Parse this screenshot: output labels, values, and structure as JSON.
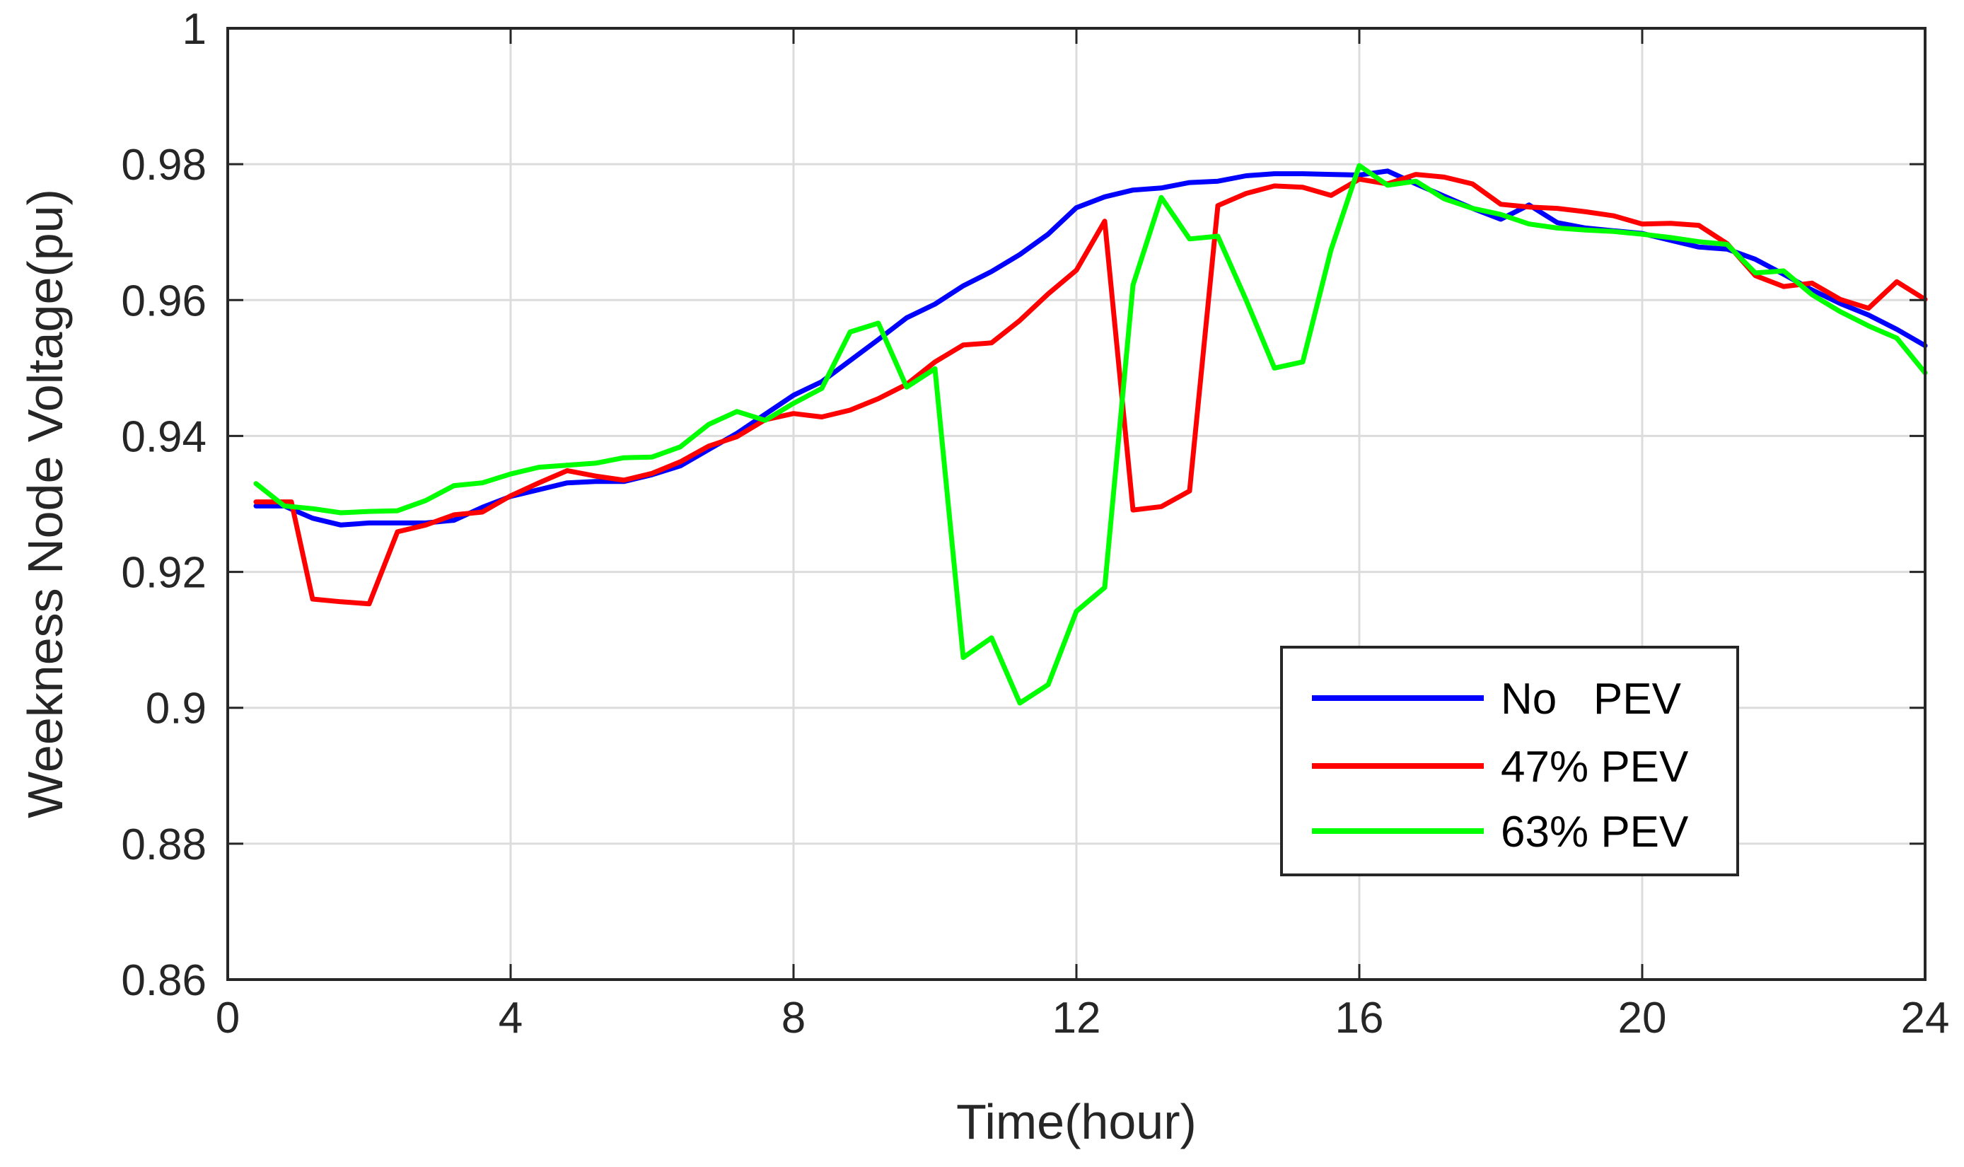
{
  "chart_data": {
    "type": "line",
    "title": "",
    "xlabel": "Time(hour)",
    "ylabel": "Weekness Node Voltage(pu)",
    "xlim": [
      0,
      24
    ],
    "ylim": [
      0.86,
      1.0
    ],
    "xticks": [
      0,
      4,
      8,
      12,
      16,
      20,
      24
    ],
    "yticks": [
      0.86,
      0.88,
      0.9,
      0.92,
      0.94,
      0.96,
      0.98,
      1.0
    ],
    "xtick_labels": [
      "0",
      "4",
      "8",
      "12",
      "16",
      "20",
      "24"
    ],
    "ytick_labels": [
      "0.86",
      "0.88",
      "0.9",
      "0.92",
      "0.94",
      "0.96",
      "0.98",
      "1"
    ],
    "grid": true,
    "legend": "bottom-right",
    "series": [
      {
        "name": "No   PEV",
        "color": "#0000ff",
        "x": [
          0.4,
          0.8,
          1.2,
          1.6,
          2.0,
          2.4,
          2.8,
          3.2,
          3.6,
          4.0,
          4.4,
          4.8,
          5.2,
          5.6,
          6.0,
          6.4,
          6.8,
          7.2,
          7.6,
          8.0,
          8.4,
          8.8,
          9.2,
          9.6,
          10.0,
          10.4,
          10.8,
          11.2,
          11.6,
          12.0,
          12.4,
          12.8,
          13.2,
          13.6,
          14.0,
          14.4,
          14.8,
          15.2,
          15.6,
          16.0,
          16.4,
          16.8,
          17.2,
          17.6,
          18.0,
          18.4,
          18.8,
          19.2,
          19.6,
          20.0,
          20.4,
          20.8,
          21.2,
          21.6,
          22.0,
          22.4,
          22.8,
          23.2,
          23.6,
          24.0
        ],
        "y": [
          0.9297,
          0.9297,
          0.9279,
          0.9269,
          0.9272,
          0.9272,
          0.9272,
          0.9276,
          0.9295,
          0.9311,
          0.9321,
          0.9331,
          0.9333,
          0.9333,
          0.9343,
          0.9356,
          0.938,
          0.9404,
          0.9432,
          0.946,
          0.948,
          0.9511,
          0.9542,
          0.9574,
          0.9594,
          0.9621,
          0.9642,
          0.9667,
          0.9697,
          0.9736,
          0.9752,
          0.9762,
          0.9765,
          0.9773,
          0.9775,
          0.9783,
          0.9786,
          0.9786,
          0.9785,
          0.9784,
          0.979,
          0.9771,
          0.9753,
          0.9735,
          0.9719,
          0.974,
          0.9714,
          0.9706,
          0.9702,
          0.9698,
          0.9688,
          0.9678,
          0.9675,
          0.966,
          0.9638,
          0.9615,
          0.9595,
          0.9578,
          0.9557,
          0.9533
        ]
      },
      {
        "name": "47% PEV",
        "color": "#ff0000",
        "x": [
          0.4,
          0.9,
          1.2,
          1.6,
          2.0,
          2.4,
          2.8,
          3.2,
          3.6,
          4.0,
          4.4,
          4.8,
          5.2,
          5.6,
          6.0,
          6.4,
          6.8,
          7.2,
          7.6,
          8.0,
          8.4,
          8.8,
          9.2,
          9.6,
          10.0,
          10.4,
          10.8,
          11.2,
          11.6,
          12.0,
          12.4,
          12.8,
          13.2,
          13.6,
          14.0,
          14.4,
          14.8,
          15.2,
          15.6,
          16.0,
          16.4,
          16.8,
          17.2,
          17.6,
          18.0,
          18.4,
          18.8,
          19.2,
          19.6,
          20.0,
          20.4,
          20.8,
          21.2,
          21.6,
          22.0,
          22.4,
          22.8,
          23.2,
          23.6,
          24.0
        ],
        "y": [
          0.9303,
          0.9303,
          0.916,
          0.9156,
          0.9153,
          0.9259,
          0.9269,
          0.9284,
          0.9288,
          0.9312,
          0.9331,
          0.9349,
          0.9341,
          0.9335,
          0.9345,
          0.9362,
          0.9385,
          0.9399,
          0.9424,
          0.9433,
          0.9428,
          0.9438,
          0.9455,
          0.9476,
          0.9509,
          0.9534,
          0.9537,
          0.957,
          0.9609,
          0.9644,
          0.9716,
          0.9291,
          0.9296,
          0.9319,
          0.9739,
          0.9757,
          0.9768,
          0.9766,
          0.9754,
          0.9778,
          0.9771,
          0.9785,
          0.9781,
          0.9771,
          0.9741,
          0.9737,
          0.9735,
          0.973,
          0.9724,
          0.9712,
          0.9713,
          0.971,
          0.9683,
          0.9636,
          0.962,
          0.9625,
          0.9601,
          0.9588,
          0.9627,
          0.9601
        ]
      },
      {
        "name": "63% PEV",
        "color": "#00ff00",
        "x": [
          0.4,
          0.8,
          1.2,
          1.6,
          2.0,
          2.4,
          2.8,
          3.2,
          3.6,
          4.0,
          4.4,
          4.8,
          5.2,
          5.6,
          6.0,
          6.4,
          6.8,
          7.2,
          7.6,
          8.0,
          8.4,
          8.8,
          9.2,
          9.6,
          10.0,
          10.4,
          10.8,
          11.2,
          11.6,
          12.0,
          12.4,
          12.8,
          13.2,
          13.6,
          14.0,
          14.4,
          14.8,
          15.2,
          15.6,
          16.0,
          16.4,
          16.8,
          17.2,
          17.6,
          18.0,
          18.4,
          18.8,
          19.2,
          19.6,
          20.0,
          20.4,
          20.8,
          21.2,
          21.6,
          22.0,
          22.4,
          22.8,
          23.2,
          23.6,
          24.0
        ],
        "y": [
          0.933,
          0.9297,
          0.9293,
          0.9287,
          0.9289,
          0.929,
          0.9305,
          0.9327,
          0.9331,
          0.9344,
          0.9354,
          0.9357,
          0.936,
          0.9368,
          0.9369,
          0.9384,
          0.9417,
          0.9436,
          0.9423,
          0.9448,
          0.947,
          0.9553,
          0.9566,
          0.9472,
          0.9499,
          0.9074,
          0.9103,
          0.9007,
          0.9034,
          0.9142,
          0.9177,
          0.9622,
          0.9751,
          0.969,
          0.9694,
          0.96,
          0.95,
          0.9509,
          0.9674,
          0.9798,
          0.9769,
          0.9775,
          0.9749,
          0.9735,
          0.9726,
          0.9712,
          0.9706,
          0.9703,
          0.9701,
          0.9697,
          0.9692,
          0.9686,
          0.9682,
          0.964,
          0.9643,
          0.9608,
          0.9583,
          0.9562,
          0.9544,
          0.9493
        ]
      }
    ]
  }
}
